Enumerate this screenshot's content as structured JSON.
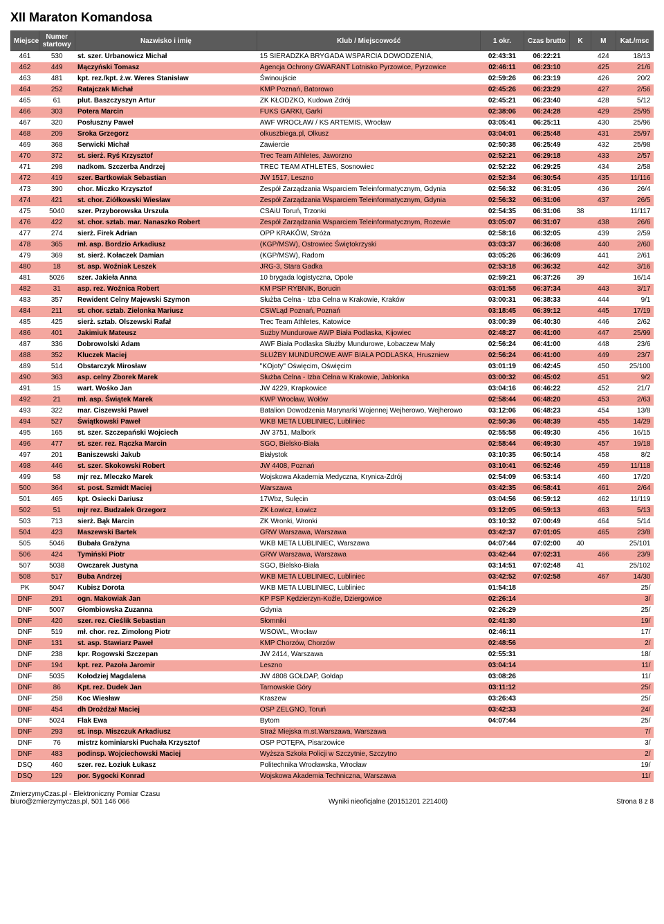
{
  "page_title": "XII Maraton Komandosa",
  "headers": {
    "miejsce": "Miejsce",
    "numer_l1": "Numer",
    "numer_l2": "startowy",
    "nazwisko": "Nazwisko i imię",
    "klub": "Klub / Miejscowość",
    "okr": "1 okr.",
    "czas": "Czas brutto",
    "k": "K",
    "m": "M",
    "kat": "Kat./msc"
  },
  "rows": [
    {
      "hl": 0,
      "mj": "461",
      "nr": "530",
      "nm": "st. szer. Urbanowicz Michał",
      "kl": "15 SIERADZKA BRYGADA WSPARCIA DOWODZENIA,",
      "o": "02:43:31",
      "c": "06:22:21",
      "k": "",
      "m": "424",
      "kt": "18/13"
    },
    {
      "hl": 1,
      "mj": "462",
      "nr": "449",
      "nm": "Mączyński Tomasz",
      "kl": "Agencja Ochrony GWARANT Lotnisko Pyrzowice, Pyrzowice",
      "o": "02:46:11",
      "c": "06:23:10",
      "k": "",
      "m": "425",
      "kt": "21/6"
    },
    {
      "hl": 0,
      "mj": "463",
      "nr": "481",
      "nm": "kpt. rez./kpt. ż.w. Weres Stanisław",
      "kl": "Świnoujście",
      "o": "02:59:26",
      "c": "06:23:19",
      "k": "",
      "m": "426",
      "kt": "20/2"
    },
    {
      "hl": 1,
      "mj": "464",
      "nr": "252",
      "nm": "Ratajczak Michał",
      "kl": "KMP Poznań, Batorowo",
      "o": "02:45:26",
      "c": "06:23:29",
      "k": "",
      "m": "427",
      "kt": "2/56"
    },
    {
      "hl": 0,
      "mj": "465",
      "nr": "61",
      "nm": "plut. Baszczyszyn Artur",
      "kl": "ZK KŁODZKO, Kudowa Zdrój",
      "o": "02:45:21",
      "c": "06:23:40",
      "k": "",
      "m": "428",
      "kt": "5/12"
    },
    {
      "hl": 1,
      "mj": "466",
      "nr": "303",
      "nm": "Potera Marcin",
      "kl": "FUKS GARKI, Garki",
      "o": "02:38:06",
      "c": "06:24:28",
      "k": "",
      "m": "429",
      "kt": "25/95"
    },
    {
      "hl": 0,
      "mj": "467",
      "nr": "320",
      "nm": "Posłuszny Paweł",
      "kl": "AWF WROCŁAW / KS ARTEMIS, Wrocław",
      "o": "03:05:41",
      "c": "06:25:11",
      "k": "",
      "m": "430",
      "kt": "25/96"
    },
    {
      "hl": 1,
      "mj": "468",
      "nr": "209",
      "nm": "Sroka Grzegorz",
      "kl": "olkuszbiega.pl, Olkusz",
      "o": "03:04:01",
      "c": "06:25:48",
      "k": "",
      "m": "431",
      "kt": "25/97"
    },
    {
      "hl": 0,
      "mj": "469",
      "nr": "368",
      "nm": "Serwicki Michał",
      "kl": "Zawiercie",
      "o": "02:50:38",
      "c": "06:25:49",
      "k": "",
      "m": "432",
      "kt": "25/98"
    },
    {
      "hl": 1,
      "mj": "470",
      "nr": "372",
      "nm": "st. sierż. Ryś Krzysztof",
      "kl": "Trec Team Athletes, Jaworzno",
      "o": "02:52:21",
      "c": "06:29:18",
      "k": "",
      "m": "433",
      "kt": "2/57"
    },
    {
      "hl": 0,
      "mj": "471",
      "nr": "298",
      "nm": "nadkom. Szczerba Andrzej",
      "kl": "TREC TEAM ATHLETES, Sosnowiec",
      "o": "02:52:22",
      "c": "06:29:25",
      "k": "",
      "m": "434",
      "kt": "2/58"
    },
    {
      "hl": 1,
      "mj": "472",
      "nr": "419",
      "nm": "szer. Bartkowiak Sebastian",
      "kl": "JW 1517, Leszno",
      "o": "02:52:34",
      "c": "06:30:54",
      "k": "",
      "m": "435",
      "kt": "11/116"
    },
    {
      "hl": 0,
      "mj": "473",
      "nr": "390",
      "nm": "chor. Miczko Krzysztof",
      "kl": "Zespół Zarządzania Wsparciem Teleinformatycznym, Gdynia",
      "o": "02:56:32",
      "c": "06:31:05",
      "k": "",
      "m": "436",
      "kt": "26/4"
    },
    {
      "hl": 1,
      "mj": "474",
      "nr": "421",
      "nm": "st. chor. Ziółkowski Wiesław",
      "kl": "Zespół Zarządzania Wsparciem Teleinformatycznym, Gdynia",
      "o": "02:56:32",
      "c": "06:31:06",
      "k": "",
      "m": "437",
      "kt": "26/5"
    },
    {
      "hl": 0,
      "mj": "475",
      "nr": "5040",
      "nm": "szer. Przyborowska Urszula",
      "kl": "CSAiU Toruń, Trzonki",
      "o": "02:54:35",
      "c": "06:31:06",
      "k": "38",
      "m": "",
      "kt": "11/117"
    },
    {
      "hl": 1,
      "mj": "476",
      "nr": "422",
      "nm": "st. chor. sztab. mar. Nanaszko Robert",
      "kl": "Zespół Zarządzania Wsparciem Teleinformatycznym, Rozewie",
      "o": "03:05:07",
      "c": "06:31:07",
      "k": "",
      "m": "438",
      "kt": "26/6"
    },
    {
      "hl": 0,
      "mj": "477",
      "nr": "274",
      "nm": "sierż. Firek Adrian",
      "kl": "OPP KRAKÓW, Stróża",
      "o": "02:58:16",
      "c": "06:32:05",
      "k": "",
      "m": "439",
      "kt": "2/59"
    },
    {
      "hl": 1,
      "mj": "478",
      "nr": "365",
      "nm": "mł. asp. Bordzio Arkadiusz",
      "kl": "(KGP/MSW), Ostrowiec Świętokrzyski",
      "o": "03:03:37",
      "c": "06:36:08",
      "k": "",
      "m": "440",
      "kt": "2/60"
    },
    {
      "hl": 0,
      "mj": "479",
      "nr": "369",
      "nm": "st. sierż. Kołaczek Damian",
      "kl": "(KGP/MSW), Radom",
      "o": "03:05:26",
      "c": "06:36:09",
      "k": "",
      "m": "441",
      "kt": "2/61"
    },
    {
      "hl": 1,
      "mj": "480",
      "nr": "18",
      "nm": "st. asp. Woźniak Leszek",
      "kl": "JRG-3, Stara Gadka",
      "o": "02:53:18",
      "c": "06:36:32",
      "k": "",
      "m": "442",
      "kt": "3/16"
    },
    {
      "hl": 0,
      "mj": "481",
      "nr": "5026",
      "nm": "szer. Jakieła Anna",
      "kl": "10 brygada logistyczna, Opole",
      "o": "02:59:21",
      "c": "06:37:26",
      "k": "39",
      "m": "",
      "kt": "16/14"
    },
    {
      "hl": 1,
      "mj": "482",
      "nr": "31",
      "nm": "asp. rez. Woźnica Robert",
      "kl": "KM PSP RYBNIK, Borucin",
      "o": "03:01:58",
      "c": "06:37:34",
      "k": "",
      "m": "443",
      "kt": "3/17"
    },
    {
      "hl": 0,
      "mj": "483",
      "nr": "357",
      "nm": "Rewident Celny Majewski Szymon",
      "kl": "Służba Celna - Izba Celna w Krakowie, Kraków",
      "o": "03:00:31",
      "c": "06:38:33",
      "k": "",
      "m": "444",
      "kt": "9/1"
    },
    {
      "hl": 1,
      "mj": "484",
      "nr": "211",
      "nm": "st. chor. sztab. Zielonka Mariusz",
      "kl": "CSWLąd Poznań, Poznań",
      "o": "03:18:45",
      "c": "06:39:12",
      "k": "",
      "m": "445",
      "kt": "17/19"
    },
    {
      "hl": 0,
      "mj": "485",
      "nr": "425",
      "nm": "sierż. sztab. Olszewski Rafał",
      "kl": "Trec Team Athletes, Katowice",
      "o": "03:00:39",
      "c": "06:40:30",
      "k": "",
      "m": "446",
      "kt": "2/62"
    },
    {
      "hl": 1,
      "mj": "486",
      "nr": "401",
      "nm": "Jakimiuk Mateusz",
      "kl": "Sużby Mundurowe AWP Biała Podlaska, Kijowiec",
      "o": "02:48:27",
      "c": "06:41:00",
      "k": "",
      "m": "447",
      "kt": "25/99"
    },
    {
      "hl": 0,
      "mj": "487",
      "nr": "336",
      "nm": "Dobrowolski Adam",
      "kl": "AWF Biała Podlaska Służby Mundurowe, Łobaczew Mały",
      "o": "02:56:24",
      "c": "06:41:00",
      "k": "",
      "m": "448",
      "kt": "23/6"
    },
    {
      "hl": 1,
      "mj": "488",
      "nr": "352",
      "nm": "Kluczek Maciej",
      "kl": "SŁUŻBY MUNDUROWE AWF BIAŁA PODLASKA, Hruszniew",
      "o": "02:56:24",
      "c": "06:41:00",
      "k": "",
      "m": "449",
      "kt": "23/7"
    },
    {
      "hl": 0,
      "mj": "489",
      "nr": "514",
      "nm": "Obstarczyk Mirosław",
      "kl": "\"KOjoty\" Oświęcim, Oświęcim",
      "o": "03:01:19",
      "c": "06:42:45",
      "k": "",
      "m": "450",
      "kt": "25/100"
    },
    {
      "hl": 1,
      "mj": "490",
      "nr": "363",
      "nm": "asp. celny Zborek Marek",
      "kl": "Służba Celna - Izba Celna w Krakowie, Jabłonka",
      "o": "03:00:32",
      "c": "06:45:02",
      "k": "",
      "m": "451",
      "kt": "9/2"
    },
    {
      "hl": 0,
      "mj": "491",
      "nr": "15",
      "nm": "wart. Wośko Jan",
      "kl": "JW 4229, Krapkowice",
      "o": "03:04:16",
      "c": "06:46:22",
      "k": "",
      "m": "452",
      "kt": "21/7"
    },
    {
      "hl": 1,
      "mj": "492",
      "nr": "21",
      "nm": "mł. asp. Świątek Marek",
      "kl": "KWP Wrocław, Wołów",
      "o": "02:58:44",
      "c": "06:48:20",
      "k": "",
      "m": "453",
      "kt": "2/63"
    },
    {
      "hl": 0,
      "mj": "493",
      "nr": "322",
      "nm": "mar. Ciszewski Paweł",
      "kl": "Batalion Dowodzenia Marynarki Wojennej  Wejherowo, Wejherowo",
      "o": "03:12:06",
      "c": "06:48:23",
      "k": "",
      "m": "454",
      "kt": "13/8"
    },
    {
      "hl": 1,
      "mj": "494",
      "nr": "527",
      "nm": "Świątkowski Paweł",
      "kl": "WKB META LUBLINIEC, Lubliniec",
      "o": "02:50:36",
      "c": "06:48:39",
      "k": "",
      "m": "455",
      "kt": "14/29"
    },
    {
      "hl": 0,
      "mj": "495",
      "nr": "165",
      "nm": "st. szer. Szczepański Wojciech",
      "kl": "JW 3751, Malbork",
      "o": "02:55:58",
      "c": "06:49:30",
      "k": "",
      "m": "456",
      "kt": "16/15"
    },
    {
      "hl": 1,
      "mj": "496",
      "nr": "477",
      "nm": "st. szer. rez. Rączka Marcin",
      "kl": "SGO, Bielsko-Biała",
      "o": "02:58:44",
      "c": "06:49:30",
      "k": "",
      "m": "457",
      "kt": "19/18"
    },
    {
      "hl": 0,
      "mj": "497",
      "nr": "201",
      "nm": "Baniszewski Jakub",
      "kl": "Białystok",
      "o": "03:10:35",
      "c": "06:50:14",
      "k": "",
      "m": "458",
      "kt": "8/2"
    },
    {
      "hl": 1,
      "mj": "498",
      "nr": "446",
      "nm": "st. szer. Skokowski Robert",
      "kl": "JW 4408, Poznań",
      "o": "03:10:41",
      "c": "06:52:46",
      "k": "",
      "m": "459",
      "kt": "11/118"
    },
    {
      "hl": 0,
      "mj": "499",
      "nr": "58",
      "nm": "mjr rez. Mleczko Marek",
      "kl": "Wojskowa Akademia Medyczna, Krynica-Zdrój",
      "o": "02:54:09",
      "c": "06:53:14",
      "k": "",
      "m": "460",
      "kt": "17/20"
    },
    {
      "hl": 1,
      "mj": "500",
      "nr": "364",
      "nm": "st. post. Szmidt Maciej",
      "kl": "Warszawa",
      "o": "03:42:35",
      "c": "06:58:41",
      "k": "",
      "m": "461",
      "kt": "2/64"
    },
    {
      "hl": 0,
      "mj": "501",
      "nr": "465",
      "nm": "kpt. Osiecki Dariusz",
      "kl": "17Wbz, Sulęcin",
      "o": "03:04:56",
      "c": "06:59:12",
      "k": "",
      "m": "462",
      "kt": "11/119"
    },
    {
      "hl": 1,
      "mj": "502",
      "nr": "51",
      "nm": "mjr rez. Budzalek Grzegorz",
      "kl": "ZK Łowicz, Łowicz",
      "o": "03:12:05",
      "c": "06:59:13",
      "k": "",
      "m": "463",
      "kt": "5/13"
    },
    {
      "hl": 0,
      "mj": "503",
      "nr": "713",
      "nm": "sierż. Bąk Marcin",
      "kl": "ZK Wronki, Wronki",
      "o": "03:10:32",
      "c": "07:00:49",
      "k": "",
      "m": "464",
      "kt": "5/14"
    },
    {
      "hl": 1,
      "mj": "504",
      "nr": "423",
      "nm": "Maszewski Bartek",
      "kl": "GRW Warszawa, Warszawa",
      "o": "03:42:37",
      "c": "07:01:05",
      "k": "",
      "m": "465",
      "kt": "23/8"
    },
    {
      "hl": 0,
      "mj": "505",
      "nr": "5046",
      "nm": "Bubała Grażyna",
      "kl": "WKB META LUBLINIEC, Warszawa",
      "o": "04:07:44",
      "c": "07:02:00",
      "k": "40",
      "m": "",
      "kt": "25/101"
    },
    {
      "hl": 1,
      "mj": "506",
      "nr": "424",
      "nm": "Tymiński Piotr",
      "kl": "GRW Warszawa, Warszawa",
      "o": "03:42:44",
      "c": "07:02:31",
      "k": "",
      "m": "466",
      "kt": "23/9"
    },
    {
      "hl": 0,
      "mj": "507",
      "nr": "5038",
      "nm": "Owczarek Justyna",
      "kl": "SGO, Bielsko-Biała",
      "o": "03:14:51",
      "c": "07:02:48",
      "k": "41",
      "m": "",
      "kt": "25/102"
    },
    {
      "hl": 1,
      "mj": "508",
      "nr": "517",
      "nm": "Buba Andrzej",
      "kl": "WKB META LUBLINIEC, Lubliniec",
      "o": "03:42:52",
      "c": "07:02:58",
      "k": "",
      "m": "467",
      "kt": "14/30"
    },
    {
      "hl": 0,
      "mj": "PK",
      "nr": "5047",
      "nm": "Kubisz Dorota",
      "kl": "WKB META LUBLINIEC, Lubliniec",
      "o": "01:54:18",
      "c": "",
      "k": "",
      "m": "",
      "kt": "25/"
    },
    {
      "hl": 1,
      "mj": "DNF",
      "nr": "291",
      "nm": "ogn. Makowiak Jan",
      "kl": "KP PSP Kędzierzyn-Koźle, Dziergowice",
      "o": "02:26:14",
      "c": "",
      "k": "",
      "m": "",
      "kt": "3/"
    },
    {
      "hl": 0,
      "mj": "DNF",
      "nr": "5007",
      "nm": "Głombiowska Zuzanna",
      "kl": "Gdynia",
      "o": "02:26:29",
      "c": "",
      "k": "",
      "m": "",
      "kt": "25/"
    },
    {
      "hl": 1,
      "mj": "DNF",
      "nr": "420",
      "nm": "szer. rez. Cieślik Sebastian",
      "kl": "Słomniki",
      "o": "02:41:30",
      "c": "",
      "k": "",
      "m": "",
      "kt": "19/"
    },
    {
      "hl": 0,
      "mj": "DNF",
      "nr": "519",
      "nm": "mł. chor. rez. Zimolong Piotr",
      "kl": "WSOWL, Wrocław",
      "o": "02:46:11",
      "c": "",
      "k": "",
      "m": "",
      "kt": "17/"
    },
    {
      "hl": 1,
      "mj": "DNF",
      "nr": "131",
      "nm": "st. asp. Stawiarz Paweł",
      "kl": "KMP Chorzów, Chorzów",
      "o": "02:48:56",
      "c": "",
      "k": "",
      "m": "",
      "kt": "2/"
    },
    {
      "hl": 0,
      "mj": "DNF",
      "nr": "238",
      "nm": "kpr. Rogowski Szczepan",
      "kl": "JW 2414, Warszawa",
      "o": "02:55:31",
      "c": "",
      "k": "",
      "m": "",
      "kt": "18/"
    },
    {
      "hl": 1,
      "mj": "DNF",
      "nr": "194",
      "nm": "kpt. rez. Pazoła Jaromir",
      "kl": "Leszno",
      "o": "03:04:14",
      "c": "",
      "k": "",
      "m": "",
      "kt": "11/"
    },
    {
      "hl": 0,
      "mj": "DNF",
      "nr": "5035",
      "nm": "Kołodziej Magdalena",
      "kl": "JW 4808 GOŁDAP, Gołdap",
      "o": "03:08:26",
      "c": "",
      "k": "",
      "m": "",
      "kt": "11/"
    },
    {
      "hl": 1,
      "mj": "DNF",
      "nr": "86",
      "nm": "Kpt. rez. Dudek Jan",
      "kl": "Tarnowskie Góry",
      "o": "03:11:12",
      "c": "",
      "k": "",
      "m": "",
      "kt": "25/"
    },
    {
      "hl": 0,
      "mj": "DNF",
      "nr": "258",
      "nm": "Koc Wiesław",
      "kl": "Kraszew",
      "o": "03:26:43",
      "c": "",
      "k": "",
      "m": "",
      "kt": "25/"
    },
    {
      "hl": 1,
      "mj": "DNF",
      "nr": "454",
      "nm": "dh Drożdżał Maciej",
      "kl": "OSP ZELGNO, Toruń",
      "o": "03:42:33",
      "c": "",
      "k": "",
      "m": "",
      "kt": "24/"
    },
    {
      "hl": 0,
      "mj": "DNF",
      "nr": "5024",
      "nm": "Flak Ewa",
      "kl": "Bytom",
      "o": "04:07:44",
      "c": "",
      "k": "",
      "m": "",
      "kt": "25/"
    },
    {
      "hl": 1,
      "mj": "DNF",
      "nr": "293",
      "nm": "st. insp. Miszczuk Arkadiusz",
      "kl": "Straż Miejska m.st.Warszawa, Warszawa",
      "o": "",
      "c": "",
      "k": "",
      "m": "",
      "kt": "7/"
    },
    {
      "hl": 0,
      "mj": "DNF",
      "nr": "76",
      "nm": "mistrz kominiarski Puchała Krzysztof",
      "kl": "OSP POTĘPA, Pisarzowice",
      "o": "",
      "c": "",
      "k": "",
      "m": "",
      "kt": "3/"
    },
    {
      "hl": 1,
      "mj": "DNF",
      "nr": "483",
      "nm": "podinsp. Wojciechowski Maciej",
      "kl": "Wyższa Szkoła Policji w Szczytnie, Szczytno",
      "o": "",
      "c": "",
      "k": "",
      "m": "",
      "kt": "2/"
    },
    {
      "hl": 0,
      "mj": "DSQ",
      "nr": "460",
      "nm": "szer. rez. Łoziuk Łukasz",
      "kl": "Politechnika Wrocławska, Wrocław",
      "o": "",
      "c": "",
      "k": "",
      "m": "",
      "kt": "19/"
    },
    {
      "hl": 1,
      "mj": "DSQ",
      "nr": "129",
      "nm": "por. Sygocki Konrad",
      "kl": "Wojskowa Akademia Techniczna, Warszawa",
      "o": "",
      "c": "",
      "k": "",
      "m": "",
      "kt": "11/"
    }
  ],
  "footer": {
    "l1": "ZmierzymyCzas.pl - Elektroniczny Pomiar Czasu",
    "l2": "biuro@zmierzymyczas.pl, 501 146 066",
    "mid": "Wyniki nieoficjalne (20151201 221400)",
    "right": "Strona 8 z 8"
  }
}
